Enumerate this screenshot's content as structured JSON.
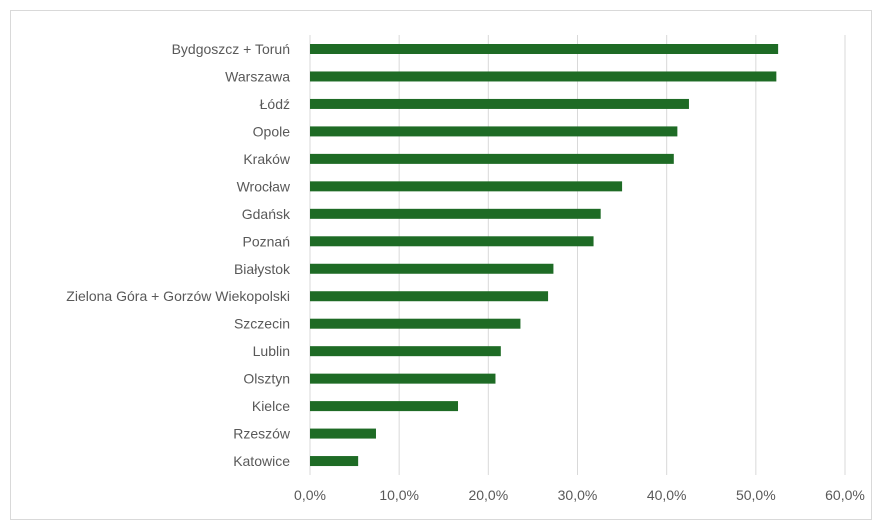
{
  "chart_data": {
    "type": "bar",
    "orientation": "horizontal",
    "categories": [
      "Bydgoszcz + Toruń",
      "Warszawa",
      "Łódź",
      "Opole",
      "Kraków",
      "Wrocław",
      "Gdańsk",
      "Poznań",
      "Białystok",
      "Zielona Góra + Gorzów Wiekopolski",
      "Szczecin",
      "Lublin",
      "Olsztyn",
      "Kielce",
      "Rzeszów",
      "Katowice"
    ],
    "values": [
      52.5,
      52.3,
      42.5,
      41.2,
      40.8,
      35.0,
      32.6,
      31.8,
      27.3,
      26.7,
      23.6,
      21.4,
      20.8,
      16.6,
      7.4,
      5.4
    ],
    "xlim": [
      0,
      60
    ],
    "x_ticks": [
      0,
      10,
      20,
      30,
      40,
      50,
      60
    ],
    "x_tick_labels": [
      "0,0%",
      "10,0%",
      "20,0%",
      "30,0%",
      "40,0%",
      "50,0%",
      "60,0%"
    ],
    "value_format": "percent",
    "grid": "vertical",
    "legend": "none",
    "bar_color": "#1e6b25",
    "grid_color": "#d9d9d9",
    "label_color": "#595959"
  }
}
